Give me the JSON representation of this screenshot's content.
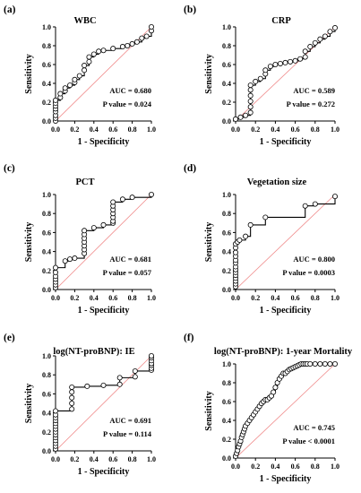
{
  "chart_data": [
    {
      "type": "line",
      "panel_label": "(a)",
      "title": "WBC",
      "xlabel": "1 - Specificity",
      "ylabel": "Sensitivity",
      "xlim": [
        0,
        1
      ],
      "ylim": [
        0,
        1
      ],
      "ticks": [
        "0.0",
        "0.2",
        "0.4",
        "0.6",
        "0.8",
        "1.0"
      ],
      "reference_line": true,
      "annotations": [
        "AUC = 0.680",
        "P value = 0.024"
      ],
      "series": [
        {
          "x": [
            0,
            0,
            0,
            0,
            0,
            0,
            0,
            0,
            0.05,
            0.05,
            0.1,
            0.1,
            0.15,
            0.2,
            0.2,
            0.25,
            0.3,
            0.3,
            0.35,
            0.35,
            0.4,
            0.45,
            0.5,
            0.6,
            0.7,
            0.75,
            0.8,
            0.85,
            0.9,
            0.95,
            1,
            1
          ],
          "y": [
            0,
            0.03,
            0.06,
            0.1,
            0.13,
            0.16,
            0.19,
            0.22,
            0.25,
            0.29,
            0.32,
            0.35,
            0.38,
            0.41,
            0.44,
            0.48,
            0.54,
            0.59,
            0.63,
            0.68,
            0.71,
            0.74,
            0.75,
            0.77,
            0.79,
            0.8,
            0.82,
            0.84,
            0.88,
            0.9,
            0.96,
            1
          ]
        }
      ]
    },
    {
      "type": "line",
      "panel_label": "(b)",
      "title": "CRP",
      "xlabel": "1 - Specificity",
      "ylabel": "Sensitivity",
      "xlim": [
        0,
        1
      ],
      "ylim": [
        0,
        1
      ],
      "ticks": [
        "0.0",
        "0.2",
        "0.4",
        "0.6",
        "0.8",
        "1.0"
      ],
      "reference_line": true,
      "annotations": [
        "AUC = 0.589",
        "P value = 0.272"
      ],
      "series": [
        {
          "x": [
            0,
            0.05,
            0.1,
            0.15,
            0.15,
            0.15,
            0.15,
            0.15,
            0.15,
            0.2,
            0.25,
            0.3,
            0.3,
            0.35,
            0.4,
            0.45,
            0.5,
            0.55,
            0.6,
            0.65,
            0.7,
            0.7,
            0.75,
            0.8,
            0.85,
            0.9,
            0.95,
            1
          ],
          "y": [
            0.02,
            0.04,
            0.06,
            0.09,
            0.15,
            0.21,
            0.27,
            0.33,
            0.38,
            0.42,
            0.45,
            0.5,
            0.54,
            0.58,
            0.6,
            0.61,
            0.62,
            0.63,
            0.64,
            0.66,
            0.68,
            0.74,
            0.79,
            0.83,
            0.87,
            0.9,
            0.95,
            0.99
          ]
        }
      ]
    },
    {
      "type": "line",
      "panel_label": "(c)",
      "title": "PCT",
      "xlabel": "1 - Specificity",
      "ylabel": "Sensitivity",
      "xlim": [
        0,
        1
      ],
      "ylim": [
        0,
        1
      ],
      "ticks": [
        "0.0",
        "0.2",
        "0.4",
        "0.6",
        "0.8",
        "1.0"
      ],
      "reference_line": true,
      "annotations": [
        "AUC = 0.681",
        "P value = 0.057"
      ],
      "series": [
        {
          "x": [
            0,
            0,
            0,
            0,
            0,
            0,
            0,
            0.1,
            0.15,
            0.2,
            0.3,
            0.3,
            0.3,
            0.3,
            0.3,
            0.3,
            0.3,
            0.4,
            0.5,
            0.6,
            0.6,
            0.6,
            0.6,
            0.6,
            0.6,
            0.6,
            0.7,
            0.8,
            1
          ],
          "y": [
            0.02,
            0.05,
            0.08,
            0.11,
            0.14,
            0.18,
            0.23,
            0.3,
            0.32,
            0.33,
            0.38,
            0.42,
            0.46,
            0.5,
            0.54,
            0.58,
            0.62,
            0.65,
            0.68,
            0.7,
            0.72,
            0.76,
            0.8,
            0.84,
            0.88,
            0.92,
            0.95,
            0.97,
            1
          ]
        }
      ]
    },
    {
      "type": "line",
      "panel_label": "(d)",
      "title": "Vegetation size",
      "xlabel": "1 - Specificity",
      "ylabel": "Sensitivity",
      "xlim": [
        0,
        1
      ],
      "ylim": [
        0,
        1
      ],
      "ticks": [
        "0.0",
        "0.2",
        "0.4",
        "0.6",
        "0.8",
        "1.0"
      ],
      "reference_line": true,
      "annotations": [
        "AUC = 0.800",
        "P value = 0.0003"
      ],
      "series": [
        {
          "x": [
            0,
            0,
            0,
            0,
            0,
            0,
            0,
            0,
            0,
            0,
            0,
            0,
            0,
            0,
            0.02,
            0.04,
            0.1,
            0.15,
            0.3,
            0.7,
            0.8,
            1
          ],
          "y": [
            0.03,
            0.06,
            0.09,
            0.12,
            0.15,
            0.18,
            0.21,
            0.24,
            0.28,
            0.31,
            0.35,
            0.39,
            0.44,
            0.48,
            0.5,
            0.52,
            0.56,
            0.68,
            0.76,
            0.88,
            0.9,
            0.98
          ]
        }
      ]
    },
    {
      "type": "line",
      "panel_label": "(e)",
      "title": "log(NT-proBNP): IE",
      "xlabel": "1 - Specificity",
      "ylabel": "Sensitivity",
      "xlim": [
        0,
        1
      ],
      "ylim": [
        0,
        1
      ],
      "ticks": [
        "0.0",
        "0.2",
        "0.4",
        "0.6",
        "0.8",
        "1.0"
      ],
      "reference_line": true,
      "annotations": [
        "AUC = 0.691",
        "P value = 0.114"
      ],
      "series": [
        {
          "x": [
            0,
            0,
            0,
            0,
            0,
            0,
            0,
            0,
            0,
            0,
            0,
            0,
            0,
            0,
            0.17,
            0.17,
            0.17,
            0.17,
            0.17,
            0.33,
            0.5,
            0.67,
            0.67,
            0.83,
            0.83,
            1,
            1,
            1,
            1,
            1,
            1,
            1
          ],
          "y": [
            0.02,
            0.05,
            0.08,
            0.11,
            0.14,
            0.17,
            0.2,
            0.23,
            0.26,
            0.29,
            0.32,
            0.35,
            0.38,
            0.42,
            0.44,
            0.5,
            0.56,
            0.62,
            0.67,
            0.68,
            0.69,
            0.7,
            0.77,
            0.78,
            0.84,
            0.85,
            0.87,
            0.9,
            0.92,
            0.95,
            0.98,
            1
          ]
        }
      ]
    },
    {
      "type": "line",
      "panel_label": "(f)",
      "title": "log(NT-proBNP): 1-year Mortality",
      "xlabel": "1 - Specificity",
      "ylabel": "Sensitivity",
      "xlim": [
        0,
        1
      ],
      "ylim": [
        0,
        1
      ],
      "ticks": [
        "0.0",
        "0.2",
        "0.4",
        "0.6",
        "0.8",
        "1.0"
      ],
      "reference_line": true,
      "annotations": [
        "AUC = 0.745",
        "P value < 0.0001"
      ],
      "series": [
        {
          "x": [
            0,
            0.01,
            0.02,
            0.03,
            0.04,
            0.05,
            0.06,
            0.07,
            0.08,
            0.09,
            0.1,
            0.12,
            0.14,
            0.16,
            0.18,
            0.2,
            0.22,
            0.24,
            0.26,
            0.28,
            0.3,
            0.32,
            0.34,
            0.36,
            0.38,
            0.4,
            0.42,
            0.44,
            0.46,
            0.48,
            0.5,
            0.52,
            0.54,
            0.56,
            0.58,
            0.6,
            0.62,
            0.64,
            0.66,
            0.68,
            0.7,
            0.72,
            0.75,
            0.8,
            0.85,
            0.9,
            0.95,
            1
          ],
          "y": [
            0.02,
            0.05,
            0.08,
            0.12,
            0.15,
            0.18,
            0.22,
            0.25,
            0.28,
            0.31,
            0.34,
            0.37,
            0.4,
            0.43,
            0.46,
            0.49,
            0.52,
            0.55,
            0.58,
            0.6,
            0.62,
            0.62,
            0.64,
            0.66,
            0.7,
            0.75,
            0.8,
            0.84,
            0.87,
            0.9,
            0.9,
            0.92,
            0.94,
            0.95,
            0.96,
            0.97,
            0.98,
            0.99,
            1,
            1,
            1,
            1,
            1,
            1,
            1,
            1,
            1,
            1
          ]
        }
      ]
    }
  ]
}
